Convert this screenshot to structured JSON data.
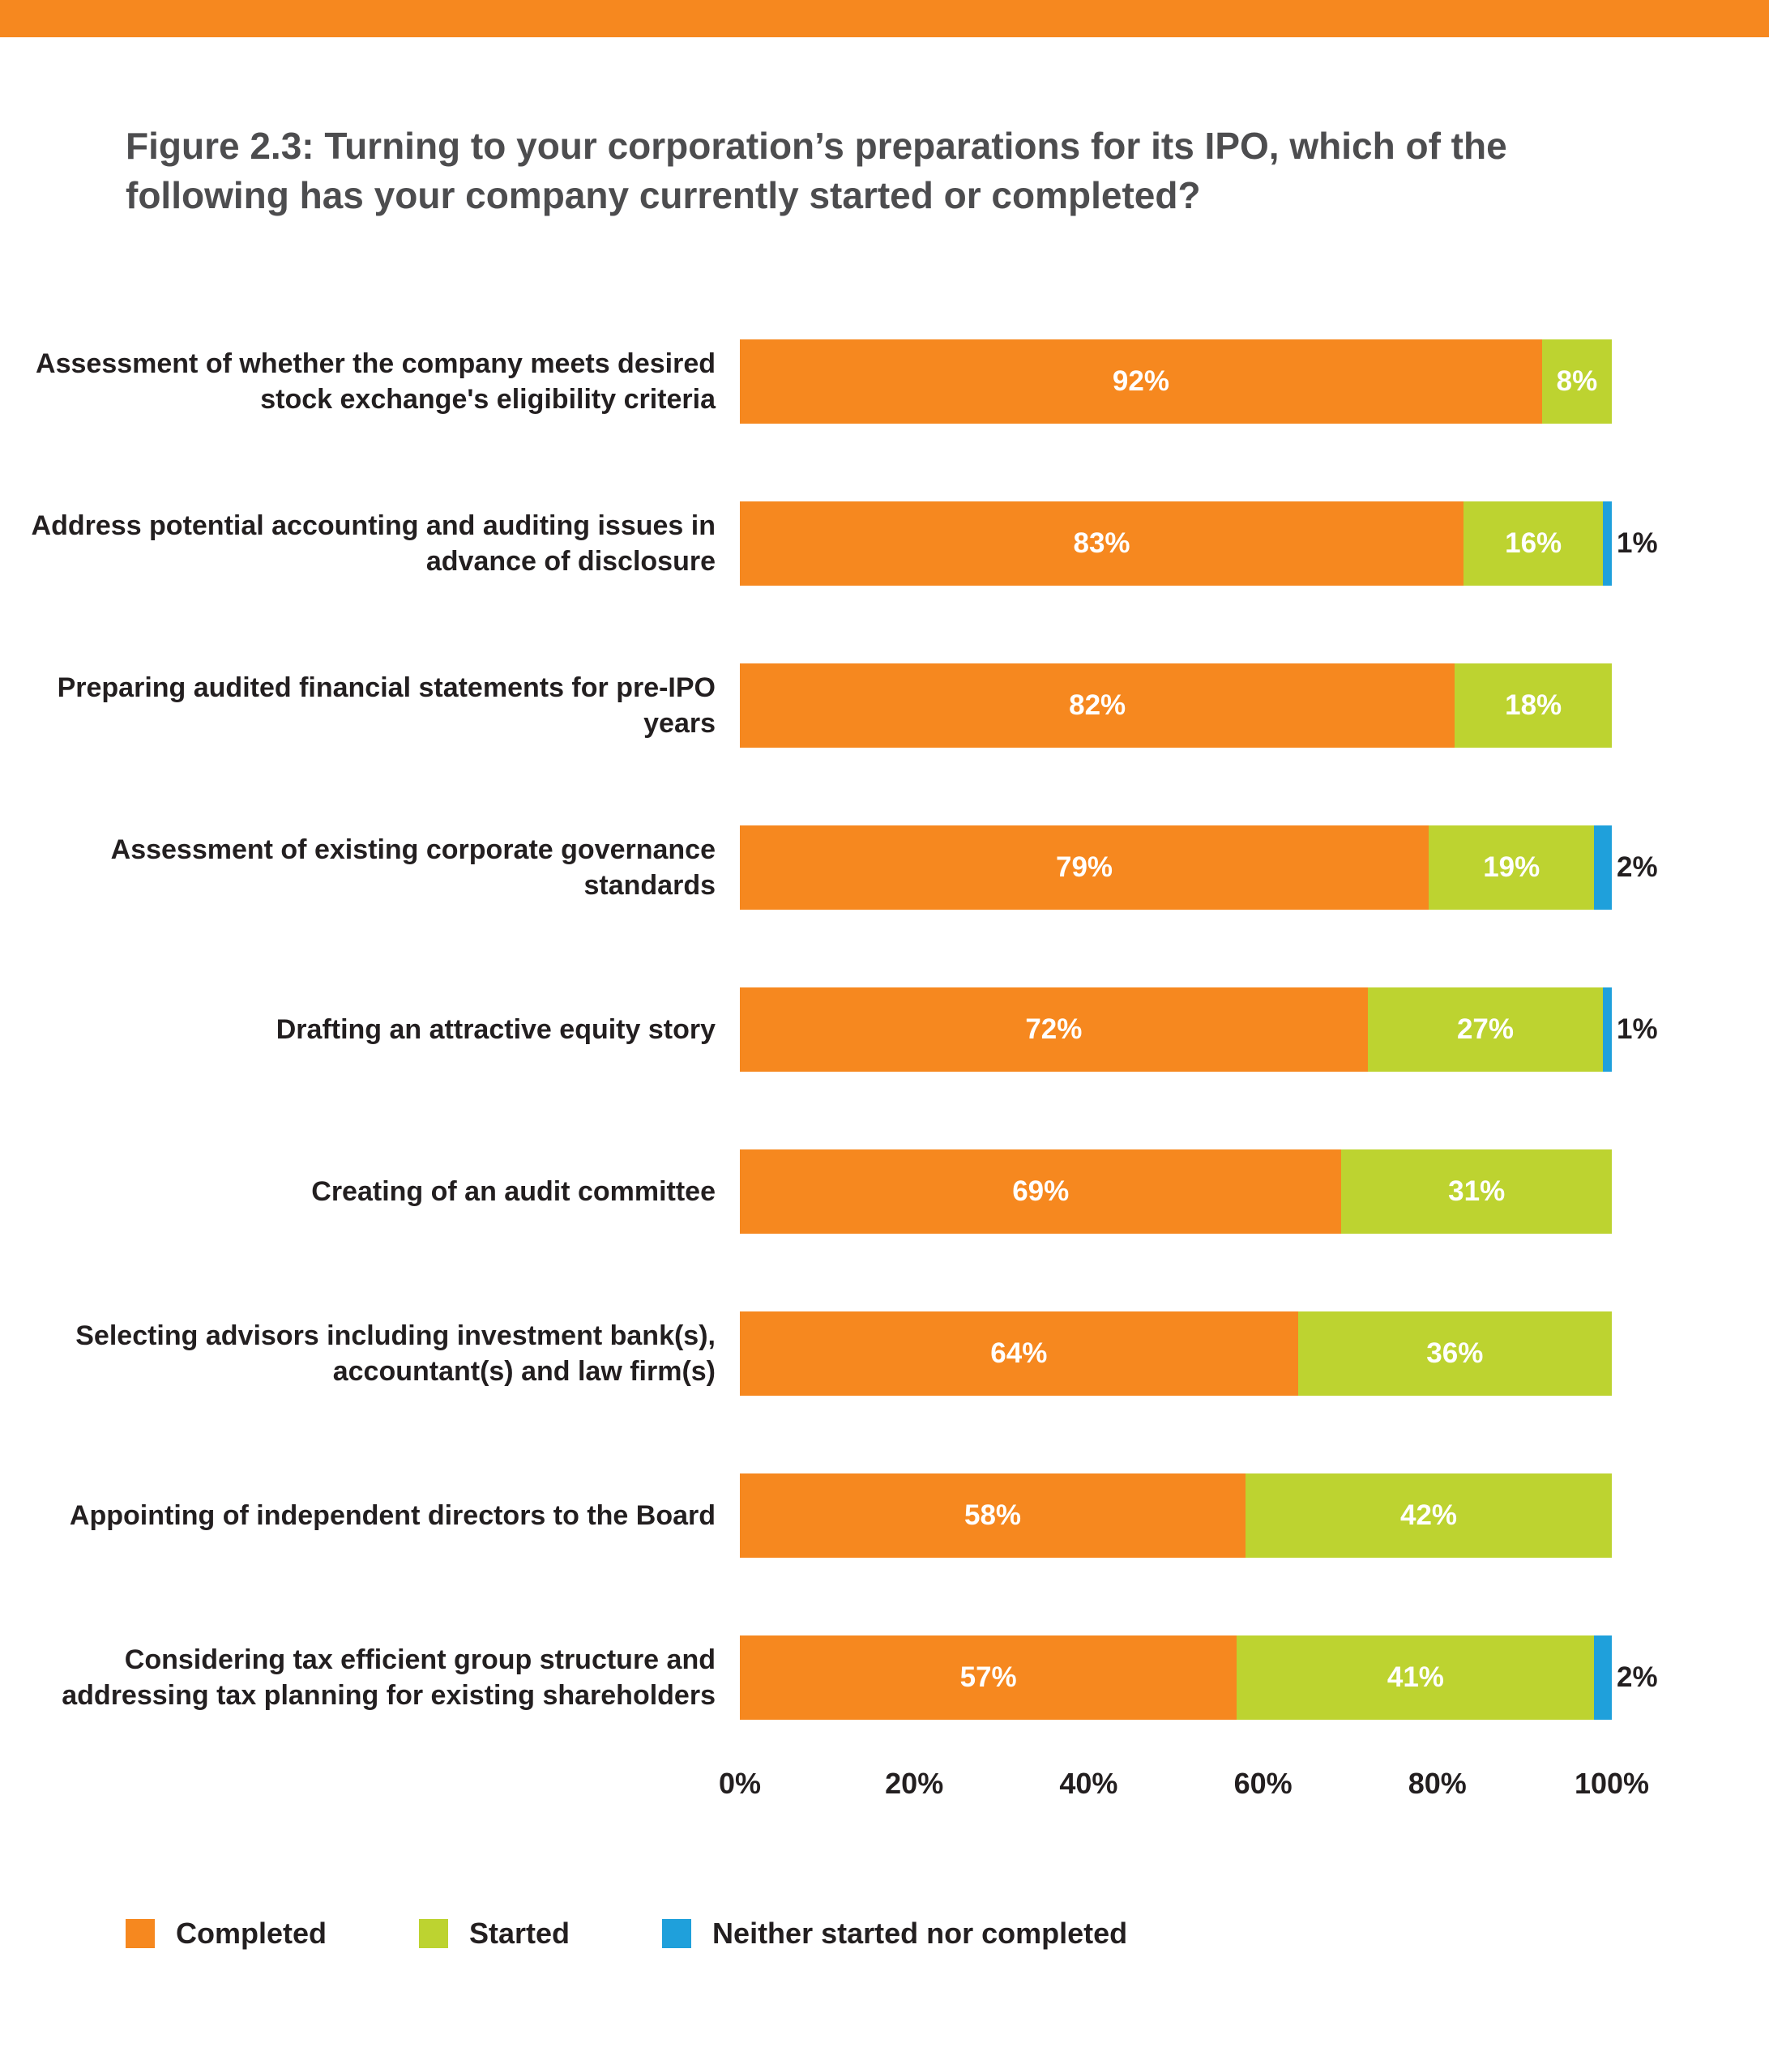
{
  "header": {
    "strip_color": "#F6881F"
  },
  "title": "Figure 2.3: Turning to your corporation’s preparations for its IPO, which of the following has your company currently started or completed?",
  "chart_data": {
    "type": "bar",
    "orientation": "horizontal",
    "stacked": true,
    "unit": "%",
    "x_axis": {
      "min": 0,
      "max": 100,
      "ticks": [
        "0%",
        "20%",
        "40%",
        "60%",
        "80%",
        "100%"
      ]
    },
    "categories": [
      "Assessment of whether the company meets desired stock exchange's eligibility criteria",
      "Address potential accounting and auditing issues in advance of disclosure",
      "Preparing audited financial statements for pre-IPO years",
      "Assessment of existing corporate governance standards",
      "Drafting an attractive equity story",
      "Creating of an audit committee",
      "Selecting advisors including investment bank(s), accountant(s) and law firm(s)",
      "Appointing of independent directors to the Board",
      "Considering tax efficient group structure and addressing tax planning for existing shareholders"
    ],
    "series": [
      {
        "name": "Completed",
        "color": "#F6881F",
        "values": [
          92,
          83,
          82,
          79,
          72,
          69,
          64,
          58,
          57
        ]
      },
      {
        "name": "Started",
        "color": "#BDD330",
        "values": [
          8,
          16,
          18,
          19,
          27,
          31,
          36,
          42,
          41
        ]
      },
      {
        "name": "Neither started nor completed",
        "color": "#1FA0DB",
        "values": [
          0,
          1,
          0,
          2,
          1,
          0,
          0,
          0,
          2
        ]
      }
    ]
  },
  "legend": {
    "items": [
      {
        "label": "Completed",
        "color": "#F6881F"
      },
      {
        "label": "Started",
        "color": "#BDD330"
      },
      {
        "label": "Neither started nor completed",
        "color": "#1FA0DB"
      }
    ]
  }
}
